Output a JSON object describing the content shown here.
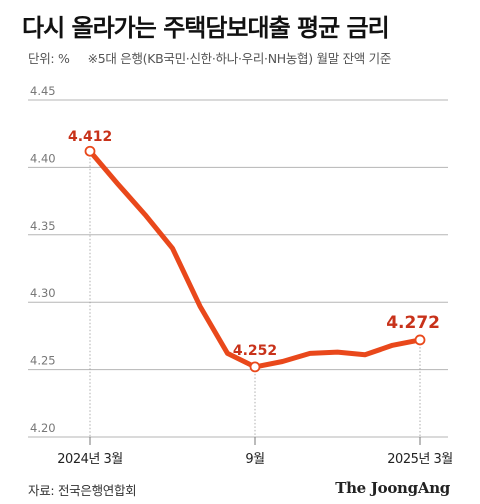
{
  "header": {
    "title": "다시 올라가는 주택담보대출 평균 금리",
    "unit_label": "단위: %",
    "note": "※5대 은행(KB국민·신한·하나·우리·NH농협) 월말 잔액 기준"
  },
  "footer": {
    "source": "자료: 전국은행연합회",
    "logo": "The JoongAng"
  },
  "colors": {
    "line": "#e9481b",
    "label": "#c8321a",
    "grid": "#b5b5b5",
    "axis_text": "#777777"
  },
  "chart_data": {
    "type": "line",
    "title": "다시 올라가는 주택담보대출 평균 금리",
    "ylabel": "단위: %",
    "ylim": [
      4.2,
      4.45
    ],
    "yticks": [
      "4.45",
      "4.40",
      "4.35",
      "4.30",
      "4.25",
      "4.20"
    ],
    "x": [
      "2024-03",
      "2024-04",
      "2024-05",
      "2024-06",
      "2024-07",
      "2024-08",
      "2024-09",
      "2024-10",
      "2024-11",
      "2024-12",
      "2025-01",
      "2025-02",
      "2025-03"
    ],
    "values": [
      4.412,
      4.388,
      4.365,
      4.34,
      4.297,
      4.262,
      4.252,
      4.256,
      4.262,
      4.263,
      4.261,
      4.268,
      4.272
    ],
    "xtick_labels": [
      {
        "x": "2024-03",
        "label": "2024년 3월"
      },
      {
        "x": "2024-09",
        "label": "9월"
      },
      {
        "x": "2025-03",
        "label": "2025년 3월"
      }
    ],
    "annotations": [
      {
        "x": "2024-03",
        "label": "4.412"
      },
      {
        "x": "2024-09",
        "label": "4.252"
      },
      {
        "x": "2025-03",
        "label": "4.272"
      }
    ],
    "grid": "horizontal",
    "legend": "none"
  }
}
